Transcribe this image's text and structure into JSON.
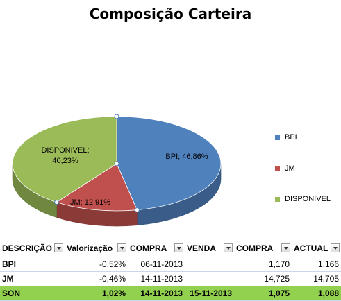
{
  "chart_data": {
    "type": "pie",
    "title": "Composição Carteira",
    "slices": [
      {
        "name": "BPI",
        "value": 46.86,
        "label": "BPI; 46,86%",
        "color": "#4f81bd"
      },
      {
        "name": "JM",
        "value": 12.91,
        "label": "JM; 12,91%",
        "color": "#c0504d"
      },
      {
        "name": "DISPONIVEL",
        "value": 40.23,
        "label_line1": "DISPONIVEL;",
        "label_line2": "40,23%",
        "color": "#9bbb59"
      }
    ],
    "legend": [
      "BPI",
      "JM",
      "DISPONIVEL"
    ],
    "legend_position": "right"
  },
  "table": {
    "headers": [
      "DESCRIÇÃO",
      "Valorização",
      "COMPRA",
      "VENDA",
      "COMPRA",
      "ACTUAL"
    ],
    "rows": [
      [
        "BPI",
        "-0,52%",
        "06-11-2013",
        "",
        "1,170",
        "1,166"
      ],
      [
        "JM",
        "-0,46%",
        "14-11-2013",
        "",
        "14,725",
        "14,705"
      ],
      [
        "SON",
        "1,02%",
        "14-11-2013",
        "15-11-2013",
        "1,075",
        "1,088"
      ]
    ],
    "highlight_color": "#92d050"
  }
}
